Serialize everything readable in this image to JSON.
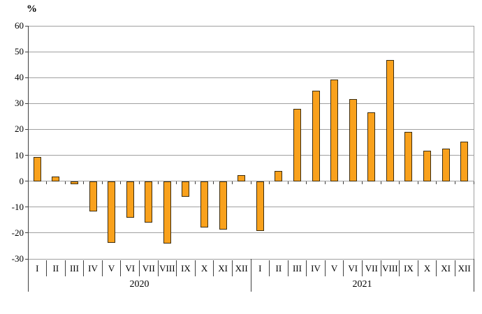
{
  "chart_data": {
    "type": "bar",
    "title": "",
    "ylabel": "%",
    "xlabel": "",
    "ylim": [
      -30,
      60
    ],
    "yticks": [
      60,
      50,
      40,
      30,
      20,
      10,
      0,
      -10,
      -20,
      -30
    ],
    "grid": "horizontal",
    "legend": "none",
    "categories": [
      "I",
      "II",
      "III",
      "IV",
      "V",
      "VI",
      "VII",
      "VIII",
      "IX",
      "X",
      "XI",
      "XII"
    ],
    "groups": [
      {
        "year": "2020",
        "values": [
          9.3,
          1.7,
          -1.2,
          -11.8,
          -23.7,
          -14.1,
          -16.0,
          -24.0,
          -5.9,
          -18.0,
          -18.6,
          2.3
        ]
      },
      {
        "year": "2021",
        "values": [
          -19.2,
          3.9,
          28.0,
          34.9,
          39.2,
          31.6,
          26.5,
          46.7,
          19.0,
          11.8,
          12.7,
          15.3
        ]
      }
    ],
    "colors": {
      "bar_fill": "#F9A11C",
      "bar_border": "#3B2D11",
      "gridline": "#A0A0A0",
      "axis": "#404040",
      "text": "#000000",
      "background": "#FFFFFF"
    }
  }
}
